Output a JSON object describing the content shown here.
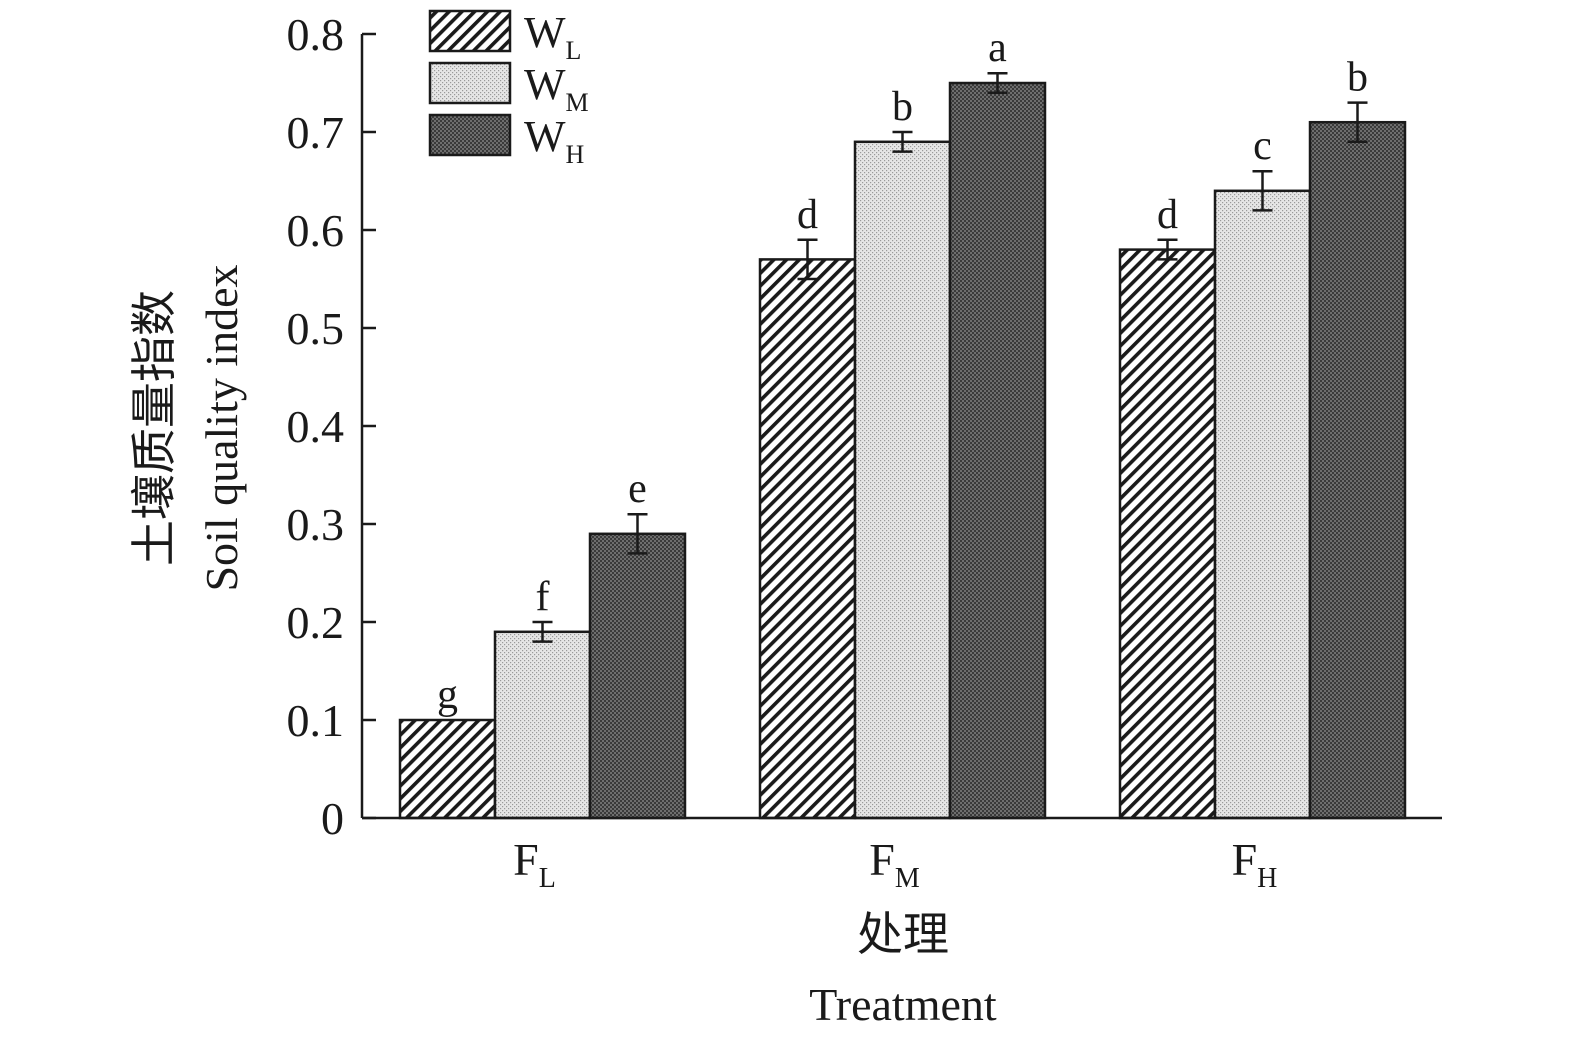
{
  "chart_data": {
    "type": "bar",
    "categories": [
      {
        "main": "F",
        "sub": "L"
      },
      {
        "main": "F",
        "sub": "M"
      },
      {
        "main": "F",
        "sub": "H"
      }
    ],
    "series": [
      {
        "name_main": "W",
        "name_sub": "L",
        "pattern": "hatch",
        "values": [
          0.1,
          0.57,
          0.58
        ],
        "errors": [
          0.0,
          0.02,
          0.01
        ],
        "letters": [
          "g",
          "d",
          "d"
        ]
      },
      {
        "name_main": "W",
        "name_sub": "M",
        "pattern": "light",
        "values": [
          0.19,
          0.69,
          0.64
        ],
        "errors": [
          0.01,
          0.01,
          0.02
        ],
        "letters": [
          "f",
          "b",
          "c"
        ]
      },
      {
        "name_main": "W",
        "name_sub": "H",
        "pattern": "dark",
        "values": [
          0.29,
          0.75,
          0.71
        ],
        "errors": [
          0.02,
          0.01,
          0.02
        ],
        "letters": [
          "e",
          "a",
          "b"
        ]
      }
    ],
    "ylabel_cn": "土壤质量指数",
    "ylabel_en": "Soil quality index",
    "xlabel_cn": "处理",
    "xlabel_en": "Treatment",
    "ylim": [
      0,
      0.8
    ],
    "yticks": [
      "0",
      "0.1",
      "0.2",
      "0.3",
      "0.4",
      "0.5",
      "0.6",
      "0.7",
      "0.8"
    ],
    "legend_position": "top-left",
    "grid": false,
    "colors": {
      "ink": "#1a1a1a",
      "light_fill": "#d9d9d9",
      "dark_fill": "#5a5a5a"
    }
  }
}
